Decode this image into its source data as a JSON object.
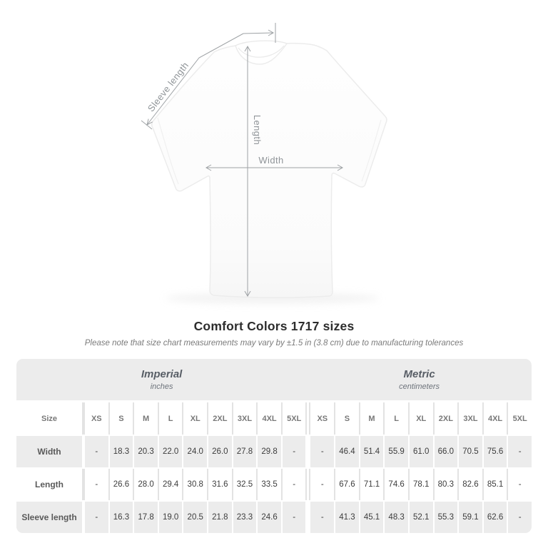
{
  "figure": {
    "annotations": {
      "sleeve_length": "Sleeve length",
      "length": "Length",
      "width": "Width"
    }
  },
  "heading": {
    "title": "Comfort Colors 1717 sizes",
    "note": "Please note that size chart measurements may vary by ±1.5 in (3.8 cm) due to manufacturing tolerances"
  },
  "chart_data": {
    "type": "table",
    "title": "Comfort Colors 1717 sizes",
    "groups": [
      {
        "label": "Imperial",
        "sublabel": "inches"
      },
      {
        "label": "Metric",
        "sublabel": "centimeters"
      }
    ],
    "size_label": "Size",
    "sizes": [
      "XS",
      "S",
      "M",
      "L",
      "XL",
      "2XL",
      "3XL",
      "4XL",
      "5XL"
    ],
    "rows": [
      {
        "label": "Width",
        "imperial": [
          "-",
          "18.3",
          "20.3",
          "22.0",
          "24.0",
          "26.0",
          "27.8",
          "29.8",
          "-"
        ],
        "metric": [
          "-",
          "46.4",
          "51.4",
          "55.9",
          "61.0",
          "66.0",
          "70.5",
          "75.6",
          "-"
        ]
      },
      {
        "label": "Length",
        "imperial": [
          "-",
          "26.6",
          "28.0",
          "29.4",
          "30.8",
          "31.6",
          "32.5",
          "33.5",
          "-"
        ],
        "metric": [
          "-",
          "67.6",
          "71.1",
          "74.6",
          "78.1",
          "80.3",
          "82.6",
          "85.1",
          "-"
        ]
      },
      {
        "label": "Sleeve length",
        "imperial": [
          "-",
          "16.3",
          "17.8",
          "19.0",
          "20.5",
          "21.8",
          "23.3",
          "24.6",
          "-"
        ],
        "metric": [
          "-",
          "41.3",
          "45.1",
          "48.3",
          "52.1",
          "55.3",
          "59.1",
          "62.6",
          "-"
        ]
      }
    ]
  },
  "colors": {
    "table_band": "#ececec",
    "annotation": "#9ea2a5",
    "title_text": "#2d2d2d"
  }
}
